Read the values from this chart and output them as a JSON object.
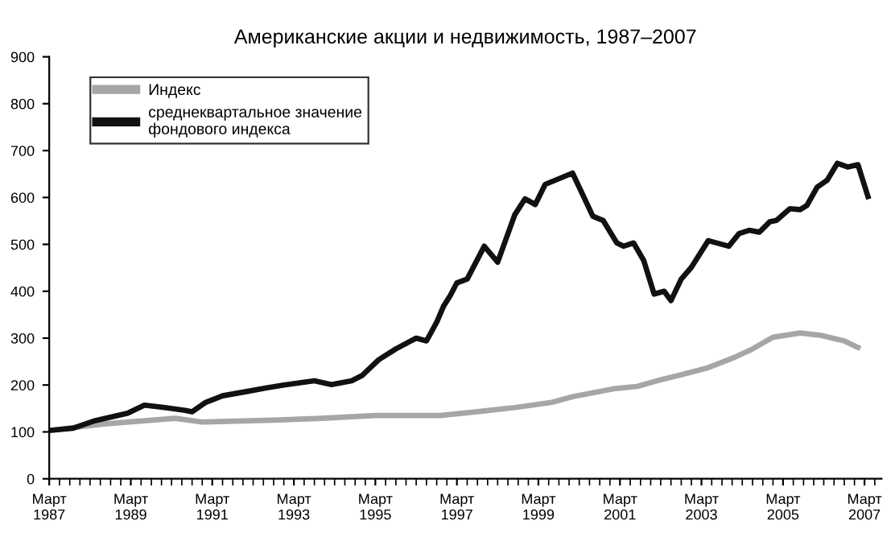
{
  "chart_data": {
    "type": "line",
    "title": "Американские акции и недвижимость, 1987–2007",
    "xlim": [
      "1987-03",
      "2007-08"
    ],
    "ylim": [
      0,
      900
    ],
    "yticks": [
      0,
      100,
      200,
      300,
      400,
      500,
      600,
      700,
      800,
      900
    ],
    "xticks": [
      {
        "value": "1987-03",
        "label": "Март\n1987"
      },
      {
        "value": "1989-03",
        "label": "Март\n1989"
      },
      {
        "value": "1991-03",
        "label": "Март\n1991"
      },
      {
        "value": "1993-03",
        "label": "Март\n1993"
      },
      {
        "value": "1995-03",
        "label": "Март\n1995"
      },
      {
        "value": "1997-03",
        "label": "Март\n1997"
      },
      {
        "value": "1999-03",
        "label": "Март\n1999"
      },
      {
        "value": "2001-03",
        "label": "Март\n2001"
      },
      {
        "value": "2003-03",
        "label": "Март\n2003"
      },
      {
        "value": "2005-03",
        "label": "Март\n2005"
      },
      {
        "value": "2007-03",
        "label": "Март\n2007"
      }
    ],
    "grid": false,
    "legend": "top left",
    "marker": "none",
    "line_style": "solid",
    "series": [
      {
        "name": "Индекс",
        "color": "#a6a6a6",
        "x": [
          "1987-03",
          "1988-07",
          "1990-04",
          "1990-12",
          "1992-09",
          "1993-11",
          "1995-03",
          "1996-10",
          "1997-09",
          "1998-08",
          "1999-07",
          "2000-01",
          "2001-01",
          "2001-08",
          "2002-03",
          "2002-09",
          "2003-05",
          "2004-01",
          "2004-06",
          "2004-12",
          "2005-08",
          "2006-02",
          "2006-09",
          "2007-01"
        ],
        "values": [
          103,
          117,
          129,
          121,
          125,
          129,
          135,
          135,
          143,
          152,
          163,
          175,
          192,
          197,
          211,
          222,
          237,
          260,
          277,
          302,
          311,
          306,
          294,
          280
        ]
      },
      {
        "name": "среднеквартальное значение\nфондового индекса",
        "color": "#111111",
        "x": [
          "1987-03",
          "1987-10",
          "1988-04",
          "1989-02",
          "1989-07",
          "1990-01",
          "1990-07",
          "1990-09",
          "1991-01",
          "1991-06",
          "1992-01",
          "1992-07",
          "1992-12",
          "1993-06",
          "1993-09",
          "1994-02",
          "1994-08",
          "1994-11",
          "1995-04",
          "1995-09",
          "1996-03",
          "1996-06",
          "1996-09",
          "1996-11",
          "1997-01",
          "1997-03",
          "1997-06",
          "1997-11",
          "1998-03",
          "1998-08",
          "1998-11",
          "1999-02",
          "1999-05",
          "1999-08",
          "2000-01",
          "2000-07",
          "2000-10",
          "2001-02",
          "2001-04",
          "2001-07",
          "2001-10",
          "2002-01",
          "2002-04",
          "2002-06",
          "2002-09",
          "2002-12",
          "2003-05",
          "2003-11",
          "2004-02",
          "2004-05",
          "2004-08",
          "2004-11",
          "2005-01",
          "2005-05",
          "2005-08",
          "2005-10",
          "2006-01",
          "2006-04",
          "2006-07",
          "2006-10",
          "2007-01",
          "2007-04"
        ],
        "values": [
          103,
          108,
          123,
          140,
          157,
          152,
          146,
          143,
          163,
          177,
          186,
          194,
          200,
          206,
          209,
          201,
          209,
          220,
          254,
          277,
          300,
          294,
          334,
          368,
          391,
          418,
          426,
          496,
          462,
          563,
          597,
          585,
          628,
          637,
          652,
          560,
          551,
          503,
          496,
          503,
          465,
          394,
          400,
          380,
          426,
          451,
          508,
          496,
          523,
          530,
          526,
          548,
          551,
          576,
          574,
          583,
          622,
          637,
          673,
          665,
          670,
          602
        ]
      }
    ]
  }
}
